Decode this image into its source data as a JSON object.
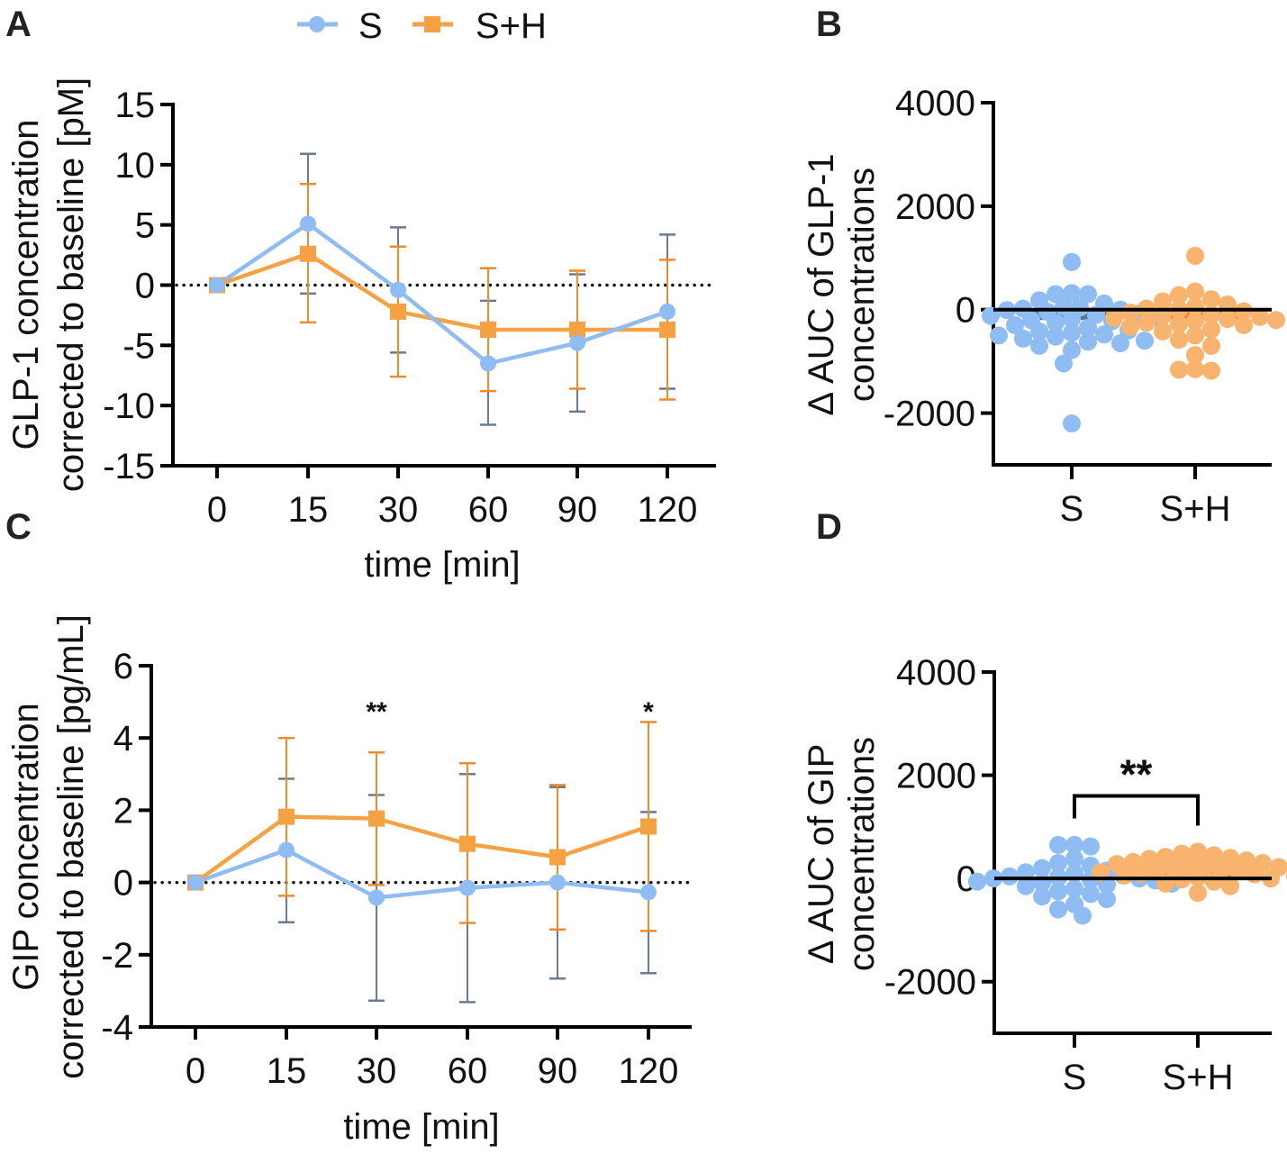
{
  "legend": {
    "entries": [
      {
        "name": "S",
        "color": "#8fbcf2",
        "marker": "circle"
      },
      {
        "name": "S+H",
        "color": "#f6a244",
        "marker": "square"
      }
    ]
  },
  "colors": {
    "s_line": "#8fbcf2",
    "sh_line": "#f6a244",
    "s_errorbar": "#6b7b93",
    "sh_errorbar": "#f08a2a",
    "sh_errorbar_inner": "#5a3418",
    "sh_dots": "#f8b46e",
    "s_dots": "#8fbcf2"
  },
  "chart_data": [
    {
      "panel": "A",
      "type": "line",
      "xlabel": "time [min]",
      "ylabel_line1": "GLP-1 concentration",
      "ylabel_line2": "corrected to baseline [pM]",
      "x_categories": [
        "0",
        "15",
        "30",
        "60",
        "90",
        "120"
      ],
      "yticks": [
        "15",
        "10",
        "5",
        "0",
        "-5",
        "-10",
        "-15"
      ],
      "ytick_values": [
        15,
        10,
        5,
        0,
        -5,
        -10,
        -15
      ],
      "ylim": [
        -15,
        15
      ],
      "reference_line": 0,
      "series": [
        {
          "name": "S",
          "values": [
            0,
            5.1,
            -0.4,
            -6.5,
            -4.8,
            -2.2
          ],
          "err_upper": [
            0,
            10.9,
            4.8,
            -1.3,
            0.9,
            4.2
          ],
          "err_lower": [
            0,
            -0.7,
            -5.6,
            -11.6,
            -10.5,
            -8.6
          ]
        },
        {
          "name": "S+H",
          "values": [
            0,
            2.6,
            -2.2,
            -3.7,
            -3.7,
            -3.7
          ],
          "err_upper": [
            0,
            8.4,
            3.2,
            1.4,
            1.2,
            2.1
          ],
          "err_lower": [
            0,
            -3.1,
            -7.6,
            -8.8,
            -8.6,
            -9.5
          ]
        }
      ],
      "annotations": []
    },
    {
      "panel": "B",
      "type": "scatter",
      "ylabel_line1": "Δ AUC of GLP-1",
      "ylabel_line2": "concentrations",
      "categories": [
        "S",
        "S+H"
      ],
      "yticks": [
        "4000",
        "2000",
        "0",
        "-2000"
      ],
      "ytick_values": [
        4000,
        2000,
        0,
        -2000
      ],
      "ylim": [
        -3000,
        4000
      ],
      "means": [
        -200,
        -180
      ],
      "groups": [
        {
          "name": "S",
          "values": [
            920,
            320,
            300,
            300,
            180,
            120,
            60,
            40,
            20,
            0,
            -10,
            -40,
            -80,
            -100,
            -120,
            -150,
            -180,
            -200,
            -220,
            -250,
            -300,
            -350,
            -400,
            -420,
            -450,
            -480,
            -500,
            -520,
            -560,
            -600,
            -620,
            -650,
            -700,
            -780,
            -1040,
            -2200
          ]
        },
        {
          "name": "S+H",
          "values": [
            1040,
            350,
            280,
            200,
            160,
            100,
            60,
            20,
            0,
            -30,
            -60,
            -100,
            -120,
            -140,
            -160,
            -180,
            -200,
            -220,
            -250,
            -280,
            -300,
            -330,
            -380,
            -420,
            -500,
            -580,
            -700,
            -880,
            -1150,
            -1180,
            -1160
          ]
        }
      ],
      "annotations": []
    },
    {
      "panel": "C",
      "type": "line",
      "xlabel": "time [min]",
      "ylabel_line1": "GIP concentration",
      "ylabel_line2": "corrected to baseline  [pg/mL]",
      "x_categories": [
        "0",
        "15",
        "30",
        "60",
        "90",
        "120"
      ],
      "yticks": [
        "6",
        "4",
        "2",
        "0",
        "-2",
        "-4"
      ],
      "ytick_values": [
        6,
        4,
        2,
        0,
        -2,
        -4
      ],
      "ylim": [
        -4,
        6
      ],
      "reference_line": 0,
      "series": [
        {
          "name": "S",
          "values": [
            0,
            0.9,
            -0.42,
            -0.15,
            0,
            -0.27
          ],
          "err_upper": [
            0,
            2.87,
            2.42,
            3.0,
            2.64,
            1.95
          ],
          "err_lower": [
            0,
            -1.1,
            -3.27,
            -3.31,
            -2.66,
            -2.51
          ]
        },
        {
          "name": "S+H",
          "values": [
            0,
            1.82,
            1.77,
            1.07,
            0.7,
            1.55
          ],
          "err_upper": [
            0,
            4.0,
            3.6,
            3.3,
            2.7,
            4.44
          ],
          "err_lower": [
            0,
            -0.37,
            -0.07,
            -1.12,
            -1.3,
            -1.34
          ]
        }
      ],
      "annotations": [
        {
          "x_category": "30",
          "text": "**"
        },
        {
          "x_category": "120",
          "text": "*"
        }
      ]
    },
    {
      "panel": "D",
      "type": "scatter",
      "ylabel_line1": "Δ AUC of GIP",
      "ylabel_line2": "concentrations",
      "categories": [
        "S",
        "S+H"
      ],
      "yticks": [
        "4000",
        "2000",
        "0",
        "-2000"
      ],
      "ytick_values": [
        4000,
        2000,
        0,
        -2000
      ],
      "ylim": [
        -3000,
        4000
      ],
      "means": [
        0,
        150
      ],
      "groups": [
        {
          "name": "S",
          "values": [
            650,
            650,
            620,
            380,
            300,
            250,
            200,
            150,
            120,
            100,
            60,
            40,
            20,
            0,
            0,
            -20,
            -40,
            -60,
            -80,
            -100,
            -120,
            -150,
            -200,
            -250,
            -300,
            -350,
            -400,
            -500,
            -600,
            -720
          ]
        },
        {
          "name": "S+H",
          "values": [
            520,
            480,
            450,
            420,
            400,
            380,
            350,
            320,
            300,
            280,
            260,
            240,
            220,
            200,
            180,
            160,
            140,
            120,
            100,
            80,
            60,
            40,
            20,
            0,
            -20,
            -60,
            -100,
            -150,
            -280
          ]
        }
      ],
      "significance": {
        "text": "**",
        "between": [
          "S",
          "S+H"
        ],
        "bracket_y": 1600
      },
      "annotations": []
    }
  ],
  "panel_letters": [
    "A",
    "B",
    "C",
    "D"
  ]
}
